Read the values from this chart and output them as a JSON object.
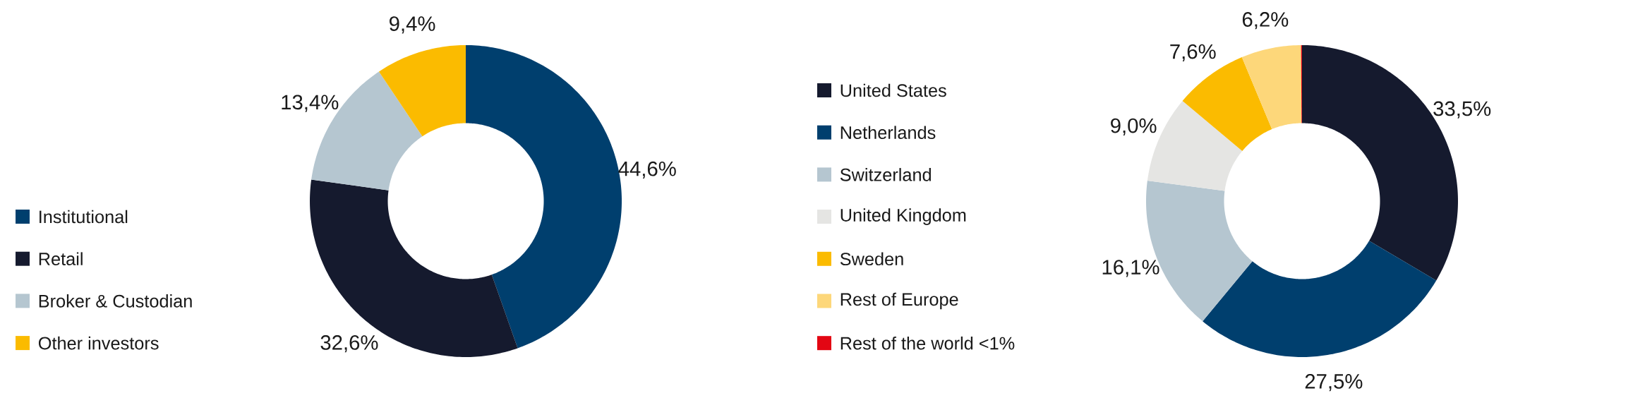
{
  "chart_data": [
    {
      "type": "donut",
      "categories": [
        "Institutional",
        "Retail",
        "Broker & Custodian",
        "Other investors"
      ],
      "values": [
        44.6,
        32.6,
        13.4,
        9.4
      ],
      "colors": [
        "#003f6e",
        "#151a2e",
        "#b5c6d0",
        "#fbbb00"
      ],
      "value_labels": [
        "44,6%",
        "32,6%",
        "13,4%",
        "9,4%"
      ],
      "legend": "left"
    },
    {
      "type": "donut",
      "categories": [
        "United States",
        "Netherlands",
        "Switzerland",
        "United Kingdom",
        "Sweden",
        "Rest of Europe",
        "Rest of the world <1%"
      ],
      "values": [
        33.5,
        27.5,
        16.1,
        9.0,
        7.6,
        6.2,
        0.1
      ],
      "colors": [
        "#151a2e",
        "#003f6e",
        "#b5c6d0",
        "#e5e5e3",
        "#fbbb00",
        "#fdd77a",
        "#e30613"
      ],
      "value_labels": [
        "33,5%",
        "27,5%",
        "16,1%",
        "9,0%",
        "7,6%",
        "6,2%",
        null
      ],
      "legend": "left"
    }
  ]
}
